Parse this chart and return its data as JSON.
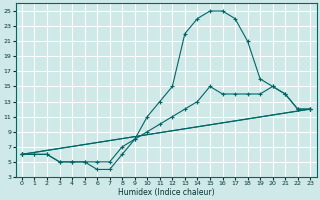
{
  "xlabel": "Humidex (Indice chaleur)",
  "background_color": "#cfe8e8",
  "grid_color": "#ffffff",
  "line_color": "#006666",
  "xlim": [
    -0.5,
    23.5
  ],
  "ylim": [
    3,
    26
  ],
  "xticks": [
    0,
    1,
    2,
    3,
    4,
    5,
    6,
    7,
    8,
    9,
    10,
    11,
    12,
    13,
    14,
    15,
    16,
    17,
    18,
    19,
    20,
    21,
    22,
    23
  ],
  "yticks": [
    3,
    5,
    7,
    9,
    11,
    13,
    15,
    17,
    19,
    21,
    23,
    25
  ],
  "line1_x": [
    0,
    1,
    2,
    3,
    4,
    5,
    6,
    7,
    8,
    9,
    10,
    11,
    12,
    13,
    14,
    15,
    16,
    17,
    18,
    19,
    20,
    21,
    22,
    23
  ],
  "line1_y": [
    6,
    6,
    6,
    5,
    5,
    5,
    4,
    4,
    6,
    8,
    11,
    13,
    15,
    22,
    24,
    25,
    25,
    24,
    21,
    16,
    15,
    14,
    12,
    12
  ],
  "line2_x": [
    0,
    1,
    2,
    3,
    4,
    5,
    6,
    7,
    8,
    9,
    10,
    11,
    12,
    13,
    14,
    15,
    16,
    17,
    18,
    19,
    20,
    21,
    22,
    23
  ],
  "line2_y": [
    6,
    6,
    6,
    5,
    5,
    5,
    5,
    5,
    7,
    8,
    9,
    10,
    11,
    12,
    13,
    15,
    14,
    14,
    14,
    14,
    15,
    14,
    12,
    12
  ],
  "line3_x": [
    0,
    23
  ],
  "line3_y": [
    6,
    12
  ],
  "line4_x": [
    0,
    23
  ],
  "line4_y": [
    6,
    12
  ]
}
